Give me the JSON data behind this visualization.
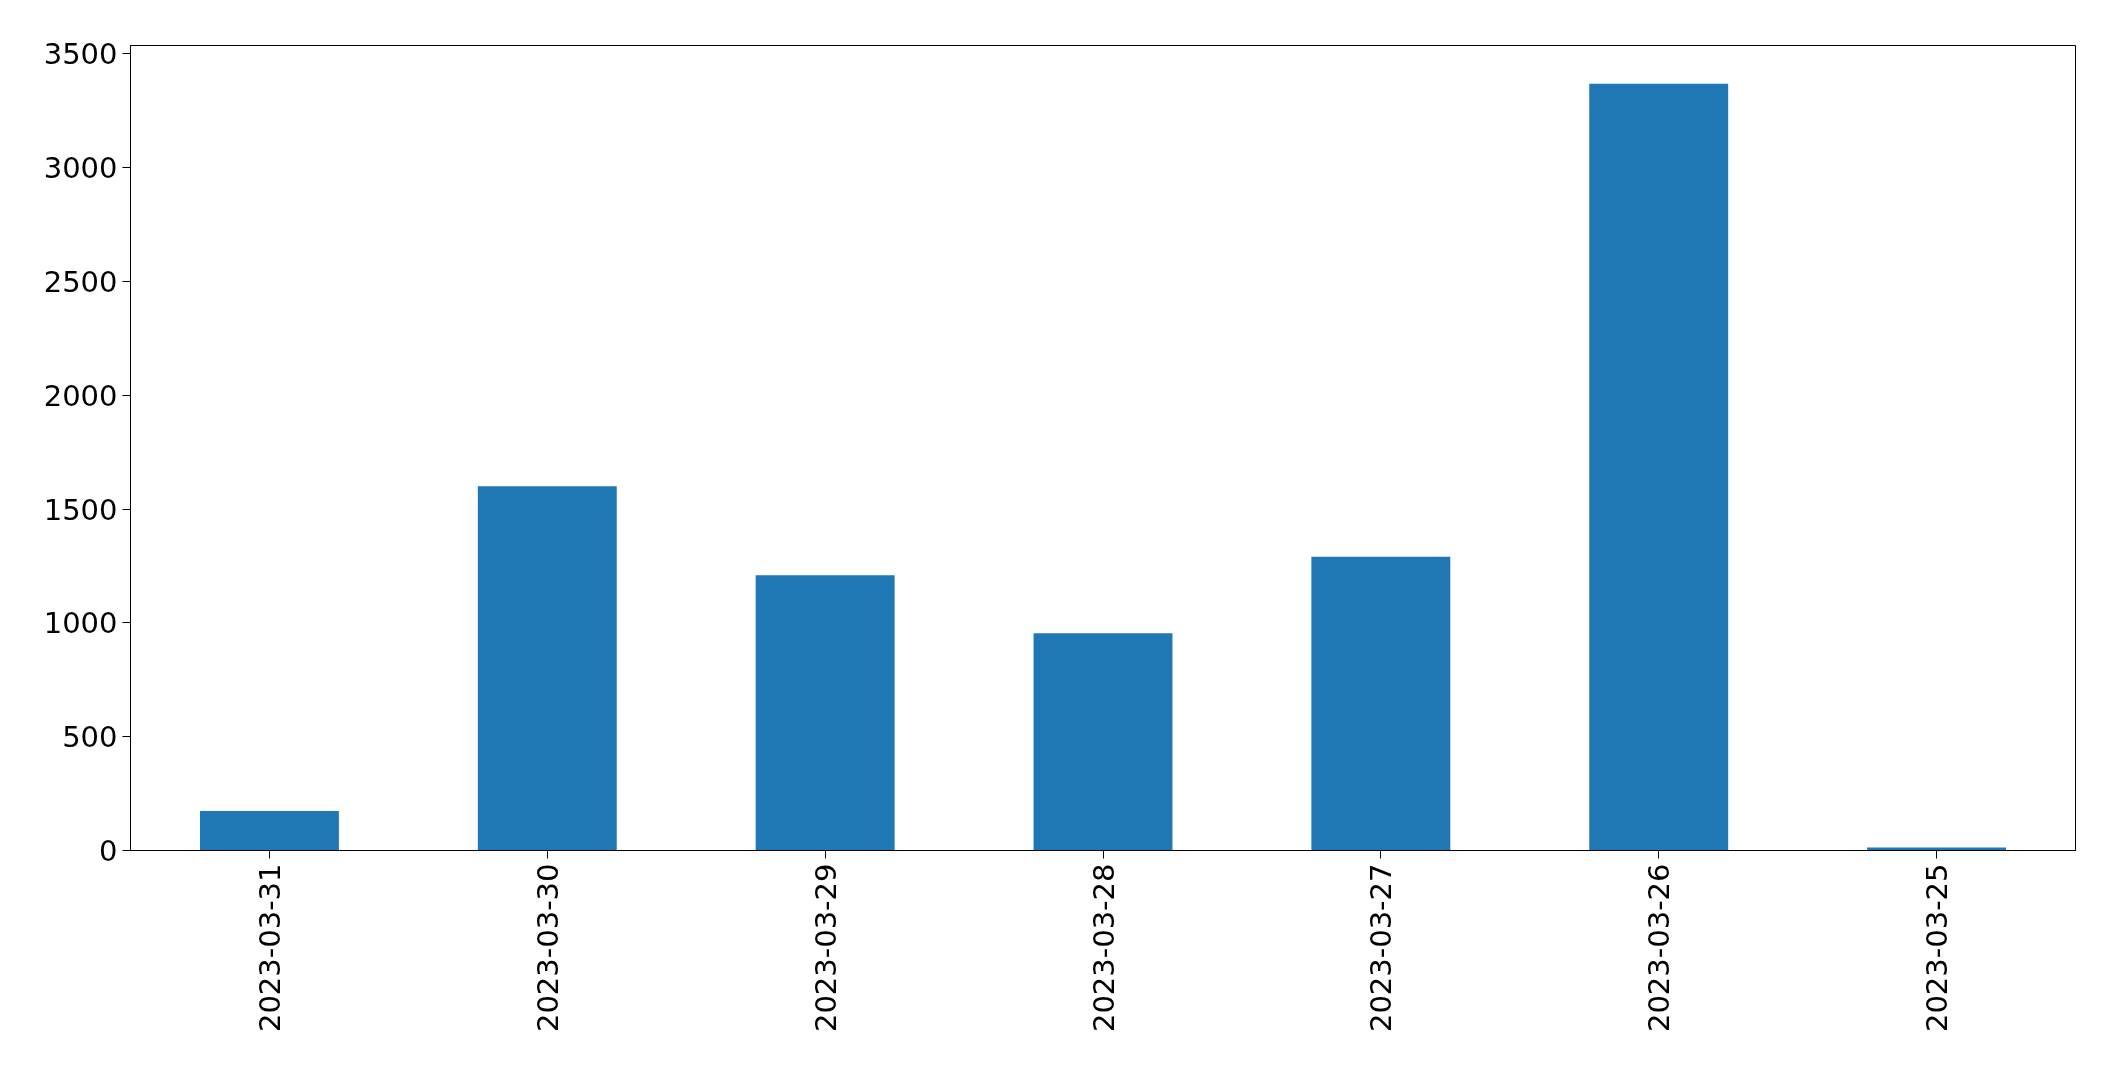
{
  "chart_data": {
    "type": "bar",
    "categories": [
      "2023-03-31",
      "2023-03-30",
      "2023-03-29",
      "2023-03-28",
      "2023-03-27",
      "2023-03-26",
      "2023-03-25"
    ],
    "values": [
      173,
      1600,
      1209,
      954,
      1290,
      3368,
      13
    ],
    "color": "#1f77b4",
    "ylim": [
      0,
      3536
    ],
    "yticks": [
      0,
      500,
      1000,
      1500,
      2000,
      2500,
      3000,
      3500
    ],
    "grid": false
  }
}
